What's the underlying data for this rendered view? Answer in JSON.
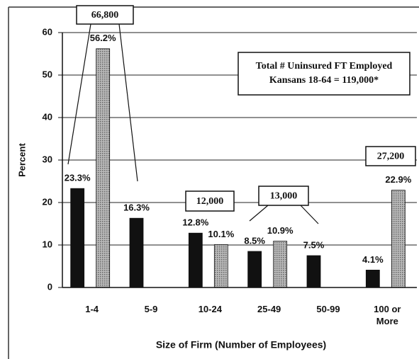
{
  "chart_data": {
    "type": "bar",
    "ylabel": "Percent",
    "xlabel": "Size of Firm (Number of Employees)",
    "categories": [
      "1-4",
      "5-9",
      "10-24",
      "25-49",
      "50-99",
      "100 or More"
    ],
    "series": [
      {
        "color": "#111111",
        "values": [
          23.3,
          16.3,
          12.8,
          8.5,
          7.5,
          4.1
        ],
        "value_labels": [
          "23.3%",
          "16.3%",
          "12.8%",
          "8.5%",
          "7.5%",
          "4.1%"
        ]
      },
      {
        "color": "#9a9a9a",
        "values": [
          56.2,
          null,
          10.1,
          10.9,
          null,
          22.9
        ],
        "value_labels": [
          "56.2%",
          null,
          "10.1%",
          "10.9%",
          null,
          "22.9%"
        ]
      }
    ],
    "ylim": [
      0,
      60
    ],
    "yticks": [
      0,
      10,
      20,
      30,
      40,
      50,
      60
    ],
    "grid": true,
    "annotations": [
      "66,800",
      "12,000",
      "13,000",
      "27,200"
    ],
    "note": [
      "Total # Uninsured FT Employed",
      "Kansans 18-64 = 119,000*"
    ]
  }
}
